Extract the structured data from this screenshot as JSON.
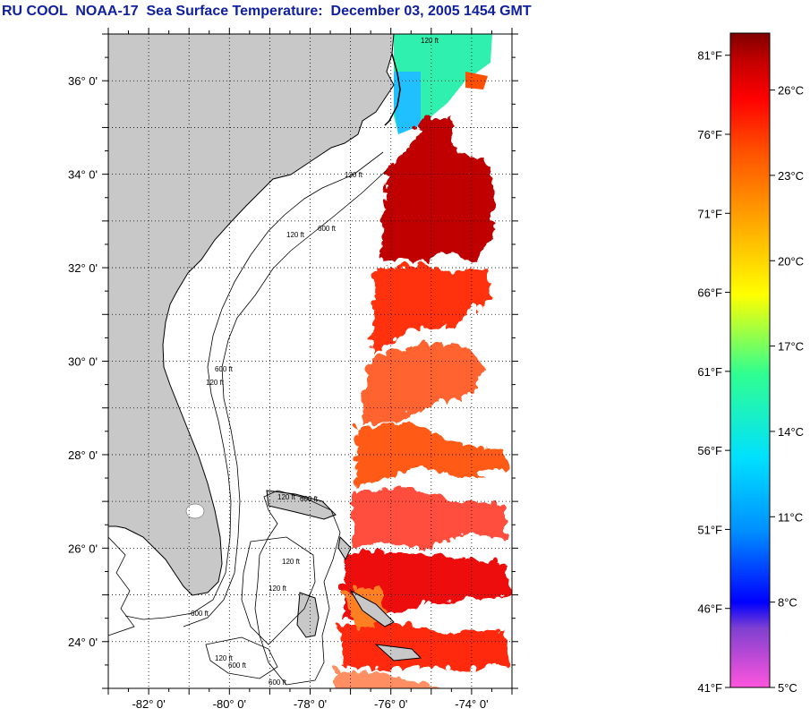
{
  "title": "RU COOL  NOAA-17  Sea Surface Temperature:  December 03, 2005 1454 GMT",
  "map": {
    "lon_range": [
      -83,
      -73
    ],
    "lat_range": [
      23,
      37
    ],
    "lat_labels": [
      "24° 0'",
      "26° 0'",
      "28° 0'",
      "30° 0'",
      "32° 0'",
      "34° 0'",
      "36° 0'"
    ],
    "lat_values": [
      24,
      26,
      28,
      30,
      32,
      34,
      36
    ],
    "lon_labels": [
      "-82° 0'",
      "-80° 0'",
      "-78° 0'",
      "-76° 0'",
      "-74° 0'"
    ],
    "lon_values": [
      -82,
      -80,
      -78,
      -76,
      -74
    ],
    "contour_labels": [
      "120 ft",
      "600 ft"
    ],
    "land_color": "#c8c8c8",
    "ocean_color": "#ffffff"
  },
  "colorbar": {
    "f_labels": [
      "81°F",
      "76°F",
      "71°F",
      "66°F",
      "61°F",
      "56°F",
      "51°F",
      "46°F",
      "41°F"
    ],
    "c_labels": [
      "26°C",
      "23°C",
      "20°C",
      "17°C",
      "14°C",
      "11°C",
      "8°C",
      "5°C"
    ],
    "c_values": [
      26,
      23,
      20,
      17,
      14,
      11,
      8,
      5
    ],
    "f_values": [
      81,
      76,
      71,
      66,
      61,
      56,
      51,
      46,
      41
    ],
    "range_c": [
      5,
      28
    ],
    "colors": [
      "#ff55dd",
      "#8040d0",
      "#0000ff",
      "#0090ff",
      "#00e0ff",
      "#30ff90",
      "#ffff00",
      "#ffa000",
      "#ff5000",
      "#ff0000",
      "#b00000",
      "#800000"
    ]
  }
}
